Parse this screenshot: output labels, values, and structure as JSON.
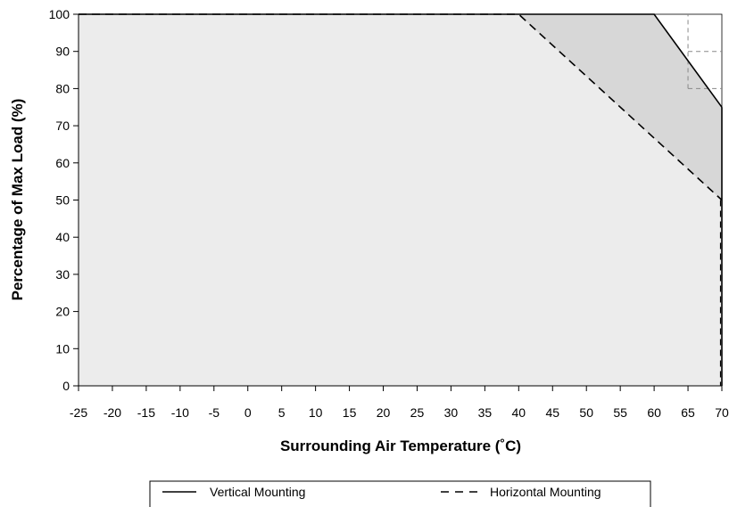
{
  "chart_data": {
    "type": "area",
    "title": "",
    "xlabel": "Surrounding Air Temperature (˚C)",
    "ylabel": "Percentage of Max Load (%)",
    "xlim": [
      -25,
      70
    ],
    "ylim": [
      0,
      100
    ],
    "x_ticks": [
      -25,
      -20,
      -15,
      -10,
      -5,
      0,
      5,
      10,
      15,
      20,
      25,
      30,
      35,
      40,
      45,
      50,
      55,
      60,
      65,
      70
    ],
    "y_ticks": [
      0,
      10,
      20,
      30,
      40,
      50,
      60,
      70,
      80,
      90,
      100
    ],
    "grid": false,
    "legend_position": "bottom",
    "series": [
      {
        "name": "Vertical Mounting",
        "line_style": "solid",
        "color": "#000000",
        "x": [
          -25,
          60,
          70
        ],
        "y": [
          100,
          100,
          75
        ]
      },
      {
        "name": "Horizontal Mounting",
        "line_style": "dashed",
        "color": "#000000",
        "x": [
          -25,
          40,
          70
        ],
        "y": [
          100,
          100,
          50
        ]
      }
    ],
    "fills": {
      "horizontal_region": "#ececec",
      "vertical_only_region": "#d7d7d7"
    },
    "reference_lines": [
      {
        "orientation": "vertical",
        "x": 65,
        "y_from": 80,
        "y_to": 100
      },
      {
        "orientation": "horizontal",
        "y": 90,
        "x_from": 65,
        "x_to": 70
      },
      {
        "orientation": "horizontal",
        "y": 80,
        "x_from": 65,
        "x_to": 70
      }
    ]
  }
}
